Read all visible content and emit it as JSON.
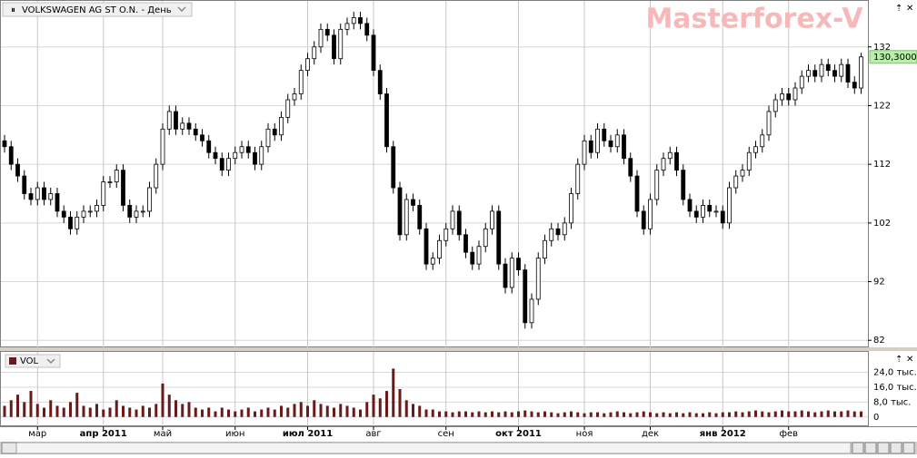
{
  "chart_data": {
    "type": "candlestick",
    "title": "VOLKSWAGEN AG ST O.N. - День",
    "watermark": "Masterforex-V",
    "categories": [
      null,
      null,
      null,
      null,
      null,
      "мар",
      null,
      null,
      null,
      null,
      null,
      null,
      null,
      null,
      null,
      "апр 2011",
      null,
      null,
      null,
      null,
      null,
      null,
      null,
      null,
      "май",
      null,
      null,
      null,
      null,
      null,
      null,
      null,
      null,
      null,
      null,
      "июн",
      null,
      null,
      null,
      null,
      null,
      null,
      null,
      null,
      null,
      null,
      "июл 2011",
      null,
      null,
      null,
      null,
      null,
      null,
      null,
      null,
      null,
      "авг",
      null,
      null,
      null,
      null,
      null,
      null,
      null,
      null,
      null,
      null,
      "сен",
      null,
      null,
      null,
      null,
      null,
      null,
      null,
      null,
      null,
      null,
      "окт 2011",
      null,
      null,
      null,
      null,
      null,
      null,
      null,
      null,
      null,
      "ноя",
      null,
      null,
      null,
      null,
      null,
      null,
      null,
      null,
      null,
      "дек",
      null,
      null,
      null,
      null,
      null,
      null,
      null,
      null,
      null,
      null,
      "янв 2012",
      null,
      null,
      null,
      null,
      null,
      null,
      null,
      null,
      null,
      "фев",
      null,
      null,
      null,
      null,
      null,
      null,
      null,
      null,
      null,
      null,
      null
    ],
    "open": [
      116,
      115,
      112,
      110,
      107,
      106,
      108,
      106,
      107,
      104,
      103,
      101,
      103,
      104,
      104,
      105,
      109,
      109,
      111,
      105,
      103,
      104,
      104,
      108,
      112,
      118,
      121,
      118,
      119,
      118,
      117,
      116,
      114,
      113,
      111,
      113,
      114,
      115,
      114,
      112,
      115,
      118,
      117,
      120,
      123,
      124,
      128,
      130,
      132,
      135,
      134,
      130,
      135,
      136,
      137,
      136,
      134,
      128,
      124,
      115,
      108,
      100,
      106,
      105,
      101,
      95,
      96,
      99,
      101,
      104,
      100,
      97,
      95,
      98,
      101,
      104,
      95,
      91,
      96,
      94,
      85,
      89,
      96,
      99,
      101,
      100,
      102,
      107,
      112,
      116,
      114,
      118,
      116,
      115,
      117,
      113,
      110,
      104,
      101,
      106,
      111,
      113,
      114,
      111,
      106,
      104,
      103,
      105,
      104,
      104,
      102,
      108,
      110,
      111,
      114,
      115,
      117,
      121,
      123,
      124,
      123,
      125,
      127,
      128,
      127,
      129,
      128,
      127,
      129,
      126,
      125
    ],
    "high": [
      117,
      116,
      113,
      111,
      108,
      109,
      109,
      108,
      108,
      105,
      104,
      104,
      105,
      105,
      106,
      110,
      110,
      112,
      112,
      106,
      105,
      105,
      109,
      113,
      119,
      122,
      122,
      120,
      120,
      119,
      118,
      117,
      115,
      114,
      114,
      115,
      116,
      116,
      115,
      116,
      119,
      119,
      121,
      124,
      125,
      129,
      131,
      133,
      136,
      136,
      135,
      136,
      137,
      138,
      138,
      137,
      135,
      129,
      125,
      116,
      109,
      107,
      107,
      106,
      102,
      97,
      100,
      102,
      105,
      105,
      101,
      98,
      99,
      102,
      105,
      105,
      96,
      97,
      97,
      95,
      90,
      97,
      100,
      102,
      102,
      103,
      108,
      113,
      117,
      117,
      119,
      119,
      117,
      118,
      118,
      114,
      111,
      105,
      107,
      112,
      114,
      115,
      115,
      112,
      107,
      105,
      106,
      106,
      105,
      105,
      109,
      111,
      112,
      115,
      116,
      118,
      122,
      124,
      125,
      125,
      126,
      128,
      129,
      129,
      130,
      130,
      129,
      130,
      130,
      127,
      131
    ],
    "low": [
      114,
      111,
      109,
      106,
      105,
      105,
      105,
      105,
      103,
      102,
      100,
      100,
      102,
      103,
      103,
      104,
      108,
      108,
      104,
      102,
      102,
      103,
      103,
      107,
      111,
      117,
      117,
      117,
      117,
      116,
      115,
      113,
      112,
      110,
      110,
      112,
      113,
      113,
      111,
      111,
      114,
      116,
      116,
      119,
      122,
      123,
      127,
      129,
      131,
      133,
      129,
      129,
      134,
      135,
      135,
      133,
      127,
      123,
      114,
      107,
      99,
      99,
      104,
      100,
      94,
      94,
      95,
      98,
      100,
      99,
      96,
      94,
      94,
      97,
      100,
      94,
      90,
      90,
      93,
      84,
      84,
      88,
      95,
      98,
      99,
      99,
      101,
      106,
      111,
      113,
      113,
      115,
      114,
      114,
      112,
      109,
      103,
      100,
      100,
      105,
      110,
      112,
      110,
      105,
      103,
      102,
      102,
      103,
      103,
      101,
      101,
      107,
      109,
      110,
      113,
      114,
      116,
      120,
      122,
      122,
      122,
      124,
      126,
      126,
      126,
      127,
      126,
      126,
      125,
      124,
      124
    ],
    "close": [
      115,
      112,
      110,
      107,
      106,
      108,
      106,
      107,
      104,
      103,
      101,
      103,
      104,
      104,
      105,
      109,
      109,
      111,
      105,
      103,
      104,
      104,
      108,
      112,
      118,
      121,
      118,
      119,
      118,
      117,
      116,
      114,
      113,
      111,
      113,
      114,
      115,
      114,
      112,
      115,
      118,
      117,
      120,
      123,
      124,
      128,
      130,
      132,
      135,
      134,
      130,
      135,
      136,
      137,
      136,
      134,
      128,
      124,
      115,
      108,
      100,
      106,
      105,
      101,
      95,
      96,
      99,
      101,
      104,
      100,
      97,
      95,
      98,
      101,
      104,
      95,
      91,
      96,
      94,
      85,
      89,
      96,
      99,
      101,
      100,
      102,
      107,
      112,
      116,
      114,
      118,
      116,
      115,
      117,
      113,
      110,
      104,
      101,
      106,
      111,
      113,
      114,
      111,
      106,
      104,
      103,
      105,
      104,
      104,
      102,
      108,
      110,
      111,
      114,
      115,
      117,
      121,
      123,
      124,
      123,
      125,
      127,
      128,
      127,
      129,
      128,
      127,
      129,
      126,
      125,
      130.3
    ],
    "last_price": {
      "value": 130.3,
      "label": "130,3000"
    },
    "ylim": [
      80.8,
      140
    ],
    "yticks": [
      82,
      92,
      102,
      112,
      122,
      132
    ],
    "grid": true,
    "up_color": "#ffffff",
    "down_color": "#000000",
    "volume": {
      "name": "VOL",
      "color": "#6b1a1a",
      "values": [
        6000,
        9000,
        12000,
        8000,
        14000,
        7000,
        5000,
        9000,
        6000,
        5000,
        8000,
        13000,
        6000,
        5000,
        7000,
        4000,
        5000,
        9000,
        6000,
        5000,
        4000,
        6000,
        5000,
        7000,
        18000,
        12000,
        9000,
        7000,
        8000,
        5000,
        4000,
        5000,
        3000,
        5000,
        4000,
        3000,
        4000,
        5000,
        3000,
        4000,
        5000,
        4000,
        6000,
        5000,
        7000,
        8000,
        6000,
        9000,
        7000,
        6000,
        5000,
        7000,
        6000,
        5000,
        4000,
        8000,
        12000,
        10000,
        14000,
        26000,
        15000,
        9000,
        7000,
        6000,
        4000,
        4000,
        3000,
        3000,
        2500,
        3000,
        3000,
        2500,
        3000,
        2500,
        3000,
        2500,
        3000,
        2500,
        3000,
        3500,
        3000,
        2500,
        3000,
        2500,
        2000,
        2500,
        3000,
        2500,
        2000,
        2500,
        2500,
        2000,
        2500,
        3000,
        2500,
        2000,
        2500,
        3000,
        2500,
        2000,
        2500,
        2000,
        2500,
        2000,
        2500,
        2000,
        2000,
        2500,
        2000,
        2500,
        2500,
        3000,
        2500,
        3000,
        3500,
        3000,
        2500,
        3000,
        3500,
        3000,
        3000,
        3500,
        3000,
        2500,
        3000,
        3500,
        3000,
        3000,
        3500,
        3000,
        3000
      ],
      "ylim": [
        -5000,
        35000
      ],
      "yticks": [
        0,
        {
          "value": 8000,
          "label": "8,0 тыс."
        },
        {
          "value": 16000,
          "label": "16,0 тыс."
        },
        {
          "value": 24000,
          "label": "24,0 тыс."
        }
      ]
    }
  }
}
